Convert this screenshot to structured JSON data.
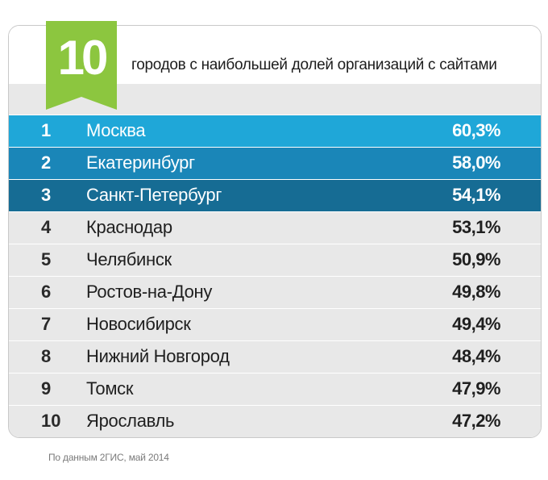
{
  "header": {
    "badge_number": "10",
    "title": "городов с наибольшей долей организаций с сайтами"
  },
  "colors": {
    "badge": "#8cc63f",
    "badge_dark": "#6aa22c",
    "row1": "#1fa7d8",
    "row2": "#1a86b8",
    "row3": "#166c94",
    "row_bg": "#e8e8e8"
  },
  "chart_data": {
    "type": "table",
    "title": "городов с наибольшей долей организаций с сайтами",
    "rows": [
      {
        "rank": "1",
        "city": "Москва",
        "value": "60,3%"
      },
      {
        "rank": "2",
        "city": "Екатеринбург",
        "value": "58,0%"
      },
      {
        "rank": "3",
        "city": "Санкт-Петербург",
        "value": "54,1%"
      },
      {
        "rank": "4",
        "city": "Краснодар",
        "value": "53,1%"
      },
      {
        "rank": "5",
        "city": "Челябинск",
        "value": "50,9%"
      },
      {
        "rank": "6",
        "city": "Ростов-на-Дону",
        "value": "49,8%"
      },
      {
        "rank": "7",
        "city": "Новосибирск",
        "value": "49,4%"
      },
      {
        "rank": "8",
        "city": "Нижний Новгород",
        "value": "48,4%"
      },
      {
        "rank": "9",
        "city": "Томск",
        "value": "47,9%"
      },
      {
        "rank": "10",
        "city": "Ярославль",
        "value": "47,2%"
      }
    ]
  },
  "footer": {
    "source": "По данным 2ГИС, май 2014"
  }
}
